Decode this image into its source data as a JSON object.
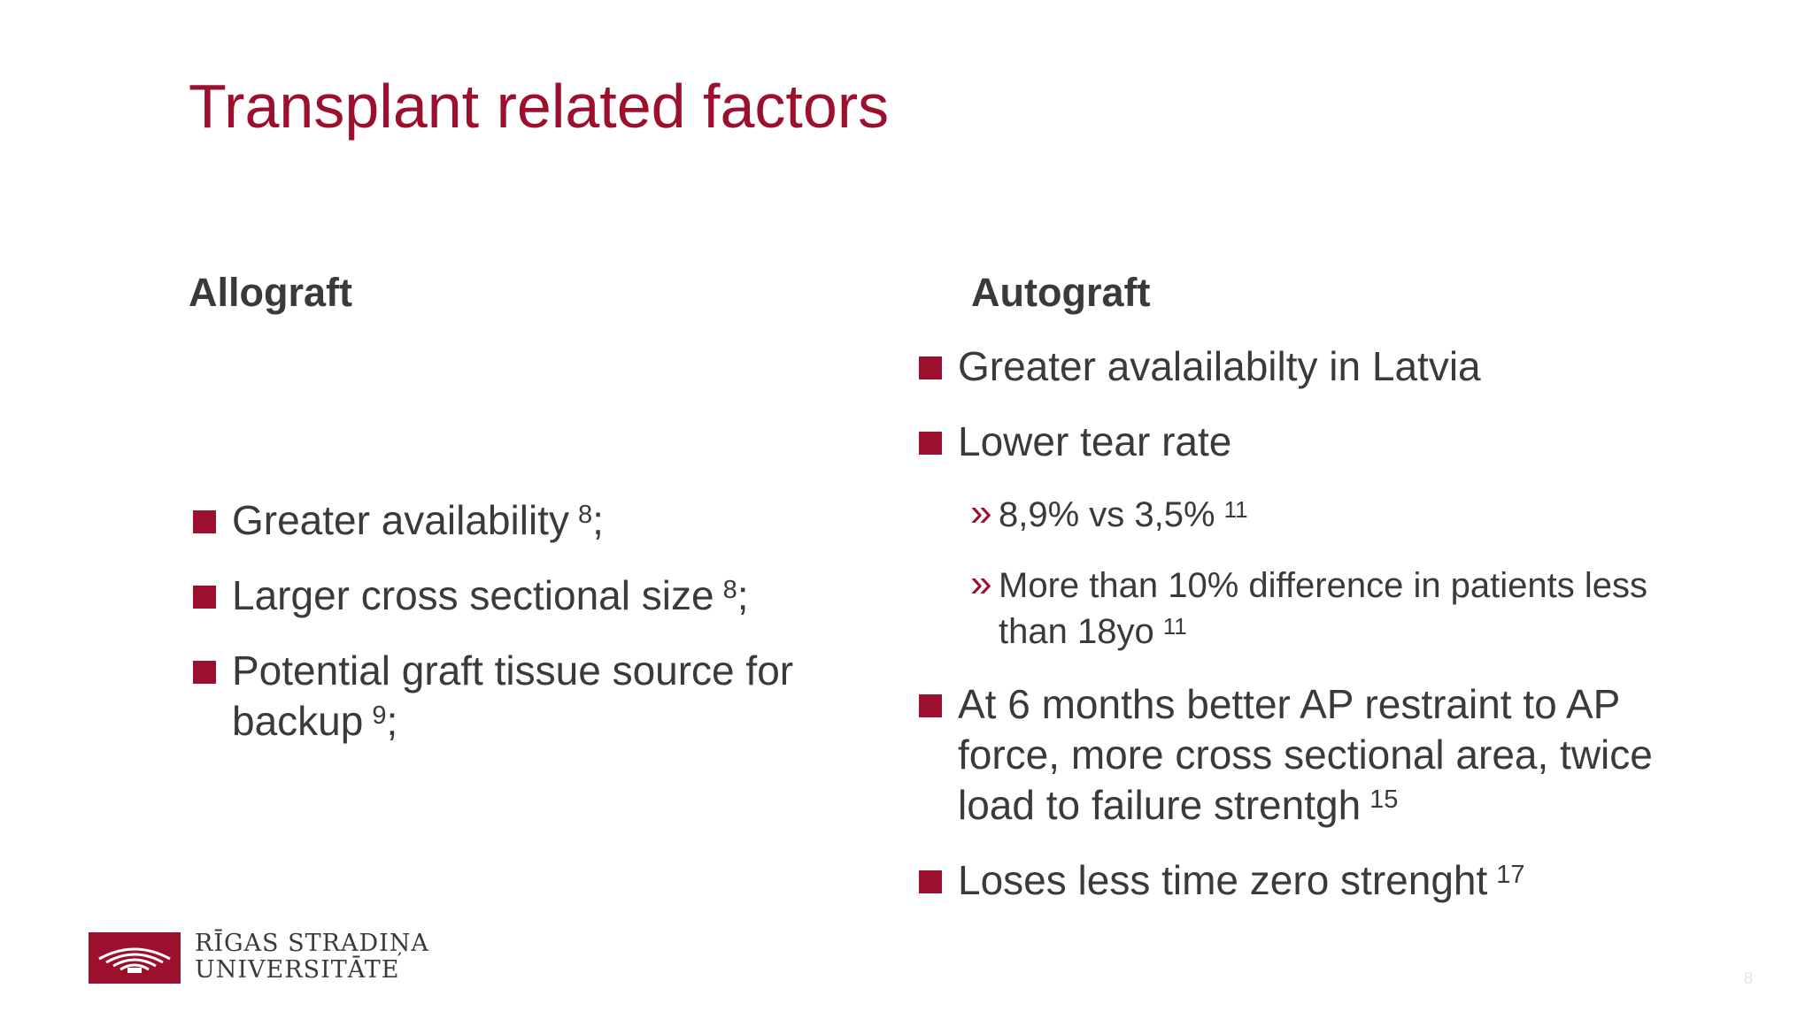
{
  "slide": {
    "title": "Transplant related factors",
    "page_number": "8"
  },
  "colors": {
    "accent": "#9c0f2d",
    "text": "#3a3a3a"
  },
  "allograft": {
    "heading": "Allograft",
    "items": [
      {
        "text": "Greater availability",
        "ref": "8",
        "suffix": ";"
      },
      {
        "text": "Larger cross sectional size",
        "ref": "8",
        "suffix": ";"
      },
      {
        "text_line1": "Potential graft tissue source for",
        "text_line2": "backup",
        "ref": "9",
        "suffix": ";"
      }
    ]
  },
  "autograft": {
    "heading": "Autograft",
    "items": [
      {
        "text": "Greater avalailabilty in Latvia"
      },
      {
        "text": "Lower tear rate"
      },
      {
        "sub1": {
          "text": "8,9% vs 3,5%",
          "ref": "11"
        }
      },
      {
        "sub2": {
          "line1": "More than 10% difference in patients less",
          "line2": "than 18yo",
          "ref": "11"
        }
      },
      {
        "line1": "At 6 months better AP restraint to AP",
        "line2": "force, more cross sectional area, twice",
        "line3": "load to failure strentgh",
        "ref": "15"
      },
      {
        "text": "Loses less time zero strenght",
        "ref": "17"
      }
    ]
  },
  "logo": {
    "icon": "university-emblem-icon",
    "line1": "RĪGAS STRADIŅA",
    "line2": "UNIVERSITĀTE"
  }
}
